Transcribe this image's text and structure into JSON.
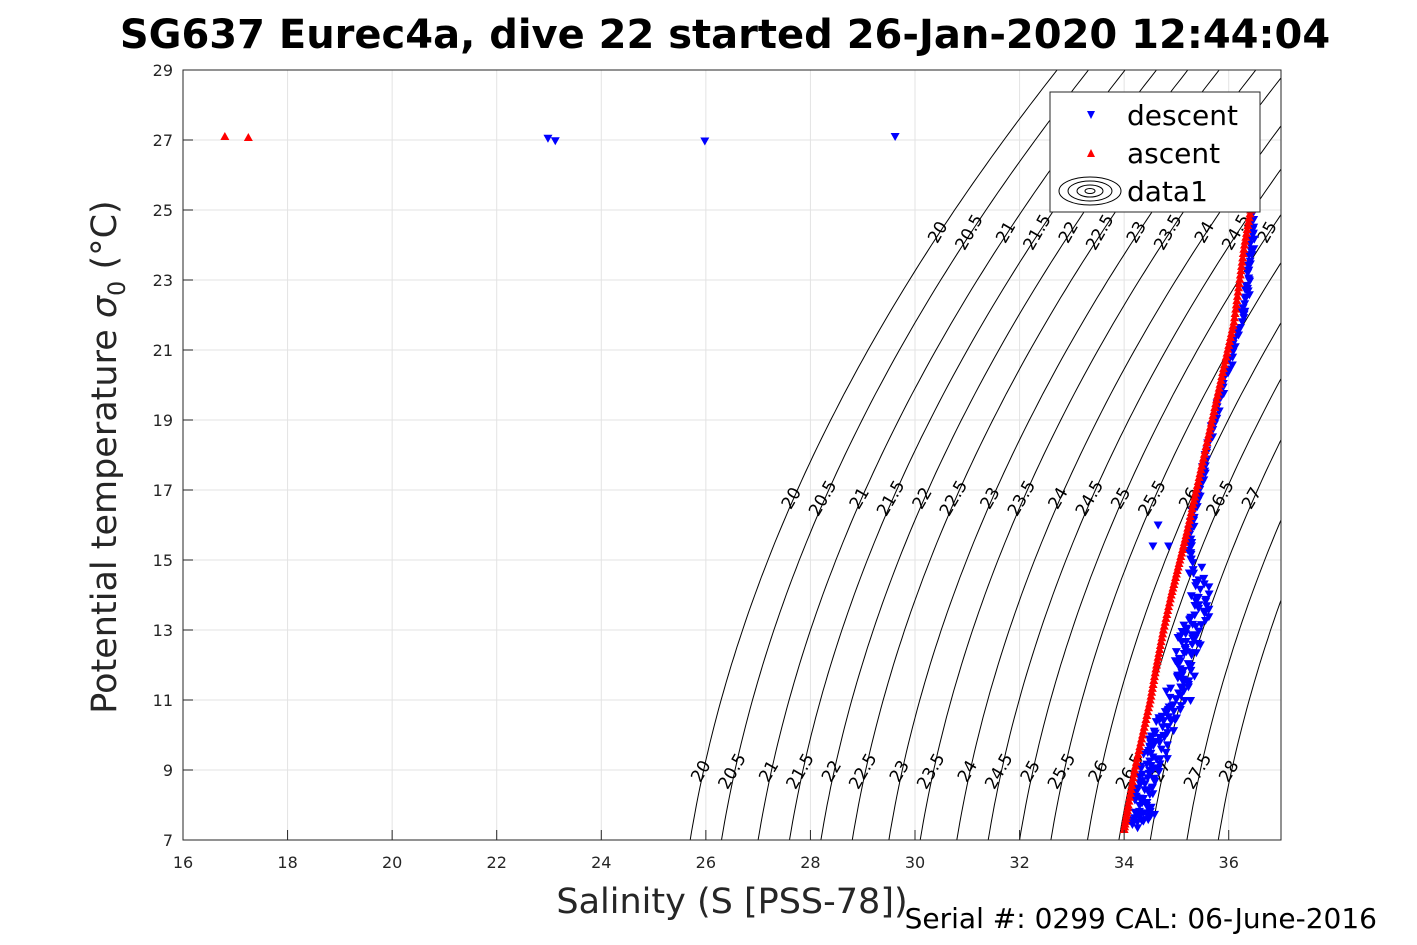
{
  "chart_data": {
    "type": "scatter",
    "title": "SG637 Eurec4a, dive 22 started 26-Jan-2020 12:44:04",
    "xlabel": "Salinity (S [PSS-78])",
    "ylabel": "Potential temperature σ0 (°C)",
    "ylabel_main": "Potential temperature ",
    "ylabel_sigma": "σ",
    "ylabel_sub": "0",
    "ylabel_unit": " (°C)",
    "xlim": [
      16,
      37
    ],
    "ylim": [
      7,
      29
    ],
    "x_ticks": [
      "16",
      "18",
      "20",
      "22",
      "24",
      "26",
      "28",
      "30",
      "32",
      "34",
      "36"
    ],
    "y_ticks": [
      "7",
      "9",
      "11",
      "13",
      "15",
      "17",
      "19",
      "21",
      "23",
      "25",
      "27",
      "29"
    ],
    "grid": true,
    "legend": {
      "placement": "top-right",
      "entries": [
        "descent",
        "ascent",
        "data1"
      ]
    },
    "density_levels": [
      20,
      20.5,
      21,
      21.5,
      22,
      22.5,
      23,
      23.5,
      24,
      24.5,
      25,
      25.5,
      26,
      26.5,
      27,
      27.5,
      28
    ],
    "contour_label_texts": [
      "20",
      "20.5",
      "21",
      "21.5",
      "22",
      "22.5",
      "23",
      "23.5",
      "24",
      "24.5",
      "25",
      "25.5",
      "26",
      "26.5",
      "27",
      "27.5",
      "28"
    ],
    "series": [
      {
        "name": "descent",
        "color": "#0000ff",
        "marker": "triangle-down",
        "outliers": [
          [
            22.98,
            27.05
          ],
          [
            23.12,
            26.98
          ],
          [
            25.98,
            26.97
          ],
          [
            29.62,
            27.1
          ]
        ],
        "profile": [
          [
            36.48,
            25.1
          ],
          [
            36.45,
            24.2
          ],
          [
            36.4,
            23.3
          ],
          [
            36.35,
            22.6
          ],
          [
            36.22,
            21.7
          ],
          [
            36.05,
            20.7
          ],
          [
            35.85,
            19.7
          ],
          [
            35.7,
            18.7
          ],
          [
            35.55,
            17.7
          ],
          [
            35.42,
            16.9
          ],
          [
            35.3,
            16.1
          ],
          [
            35.25,
            15.4
          ],
          [
            35.38,
            14.6
          ],
          [
            35.55,
            13.9
          ],
          [
            35.35,
            13.1
          ],
          [
            35.15,
            12.3
          ],
          [
            35.1,
            11.5
          ],
          [
            34.95,
            10.7
          ],
          [
            34.7,
            10.0
          ],
          [
            34.55,
            9.3
          ],
          [
            34.45,
            8.6
          ],
          [
            34.35,
            7.9
          ],
          [
            34.3,
            7.4
          ]
        ],
        "scatter_offgrid": [
          [
            34.65,
            16.0
          ],
          [
            34.55,
            15.4
          ],
          [
            34.85,
            15.4
          ]
        ]
      },
      {
        "name": "ascent",
        "color": "#ff0000",
        "marker": "triangle-up",
        "outliers": [
          [
            16.8,
            27.1
          ],
          [
            17.25,
            27.07
          ]
        ],
        "profile": [
          [
            36.42,
            25.0
          ],
          [
            36.3,
            24.0
          ],
          [
            36.2,
            22.9
          ],
          [
            36.1,
            21.8
          ],
          [
            35.95,
            20.8
          ],
          [
            35.8,
            19.8
          ],
          [
            35.65,
            18.8
          ],
          [
            35.5,
            17.8
          ],
          [
            35.35,
            16.8
          ],
          [
            35.2,
            15.8
          ],
          [
            35.05,
            14.9
          ],
          [
            34.9,
            14.0
          ],
          [
            34.75,
            13.0
          ],
          [
            34.62,
            12.0
          ],
          [
            34.5,
            11.0
          ],
          [
            34.35,
            10.0
          ],
          [
            34.2,
            9.0
          ],
          [
            34.08,
            8.0
          ],
          [
            34.0,
            7.3
          ]
        ]
      }
    ]
  },
  "footer": {
    "serial_text": "Serial #: 0299 CAL: 06-June-2016"
  }
}
